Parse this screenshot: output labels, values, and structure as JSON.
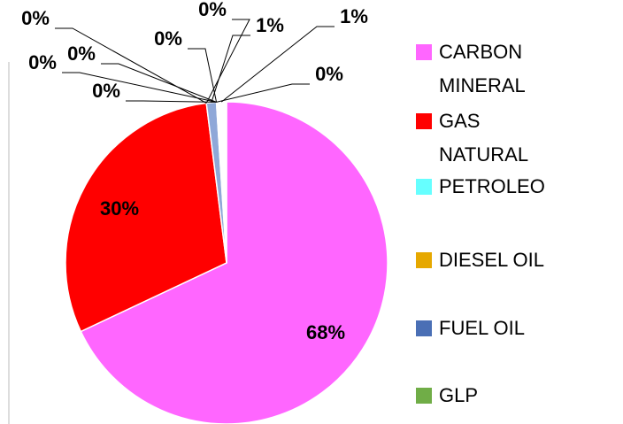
{
  "chart_data": {
    "type": "pie",
    "categories": [
      "CARBON MINERAL",
      "GAS NATURAL",
      "PETROLEO",
      "DIESEL OIL",
      "FUEL OIL",
      "GLP",
      null,
      null,
      null,
      null,
      null
    ],
    "values": [
      68,
      30,
      0,
      0,
      1,
      0,
      0,
      0,
      0,
      0,
      1
    ],
    "value_labels": [
      "68%",
      "30%",
      "0%",
      "0%",
      "1%",
      "0%",
      "0%",
      "0%",
      "0%",
      "0%",
      "1%"
    ],
    "colors": [
      "#ff66ff",
      "#ff0000",
      "#66ffff",
      "#e6a800",
      "#8fa8d8",
      "#70ad47",
      "#ffffff",
      "#ffffff",
      "#ffffff",
      "#ffffff",
      "#ffffff"
    ],
    "legend_colors": [
      "#ff66ff",
      "#ff0000",
      "#66ffff",
      "#e6a800",
      "#4a6fb5",
      "#70ad47"
    ]
  }
}
